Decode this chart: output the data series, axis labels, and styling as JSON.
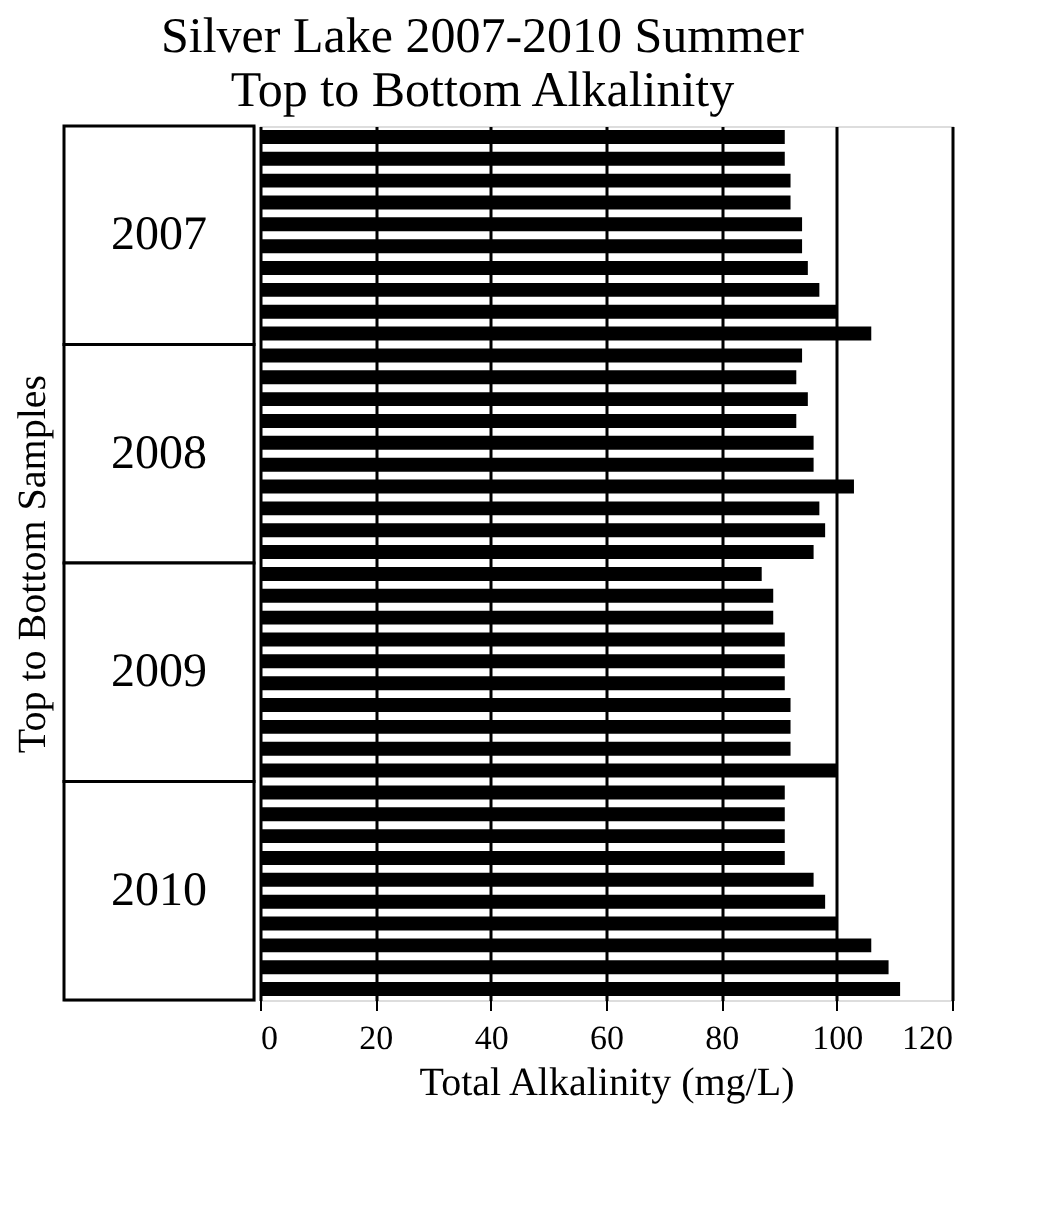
{
  "chart_data": {
    "type": "bar",
    "orientation": "horizontal",
    "title": "Silver Lake 2007-2010 Summer\nTop to Bottom Alkalinity",
    "xlabel": "Total Alkalinity (mg/L)",
    "ylabel": "Top to Bottom Samples",
    "categories": [
      null,
      null,
      null,
      null,
      "2007",
      null,
      null,
      null,
      null,
      null,
      null,
      null,
      null,
      null,
      "2008",
      null,
      null,
      null,
      null,
      null,
      null,
      null,
      null,
      null,
      "2009",
      null,
      null,
      null,
      null,
      null,
      null,
      null,
      null,
      null,
      "2010",
      null,
      null,
      null,
      null,
      null
    ],
    "values": [
      91,
      91,
      92,
      92,
      94,
      94,
      95,
      97,
      100,
      106,
      94,
      93,
      95,
      93,
      96,
      96,
      103,
      97,
      98,
      96,
      87,
      89,
      89,
      91,
      91,
      91,
      92,
      92,
      92,
      100,
      91,
      91,
      91,
      91,
      96,
      98,
      100,
      106,
      109,
      111
    ],
    "color": "#000000",
    "xlim": [
      0,
      120
    ],
    "xticks": [
      0,
      20,
      40,
      60,
      80,
      100,
      120
    ],
    "grid": "x"
  }
}
